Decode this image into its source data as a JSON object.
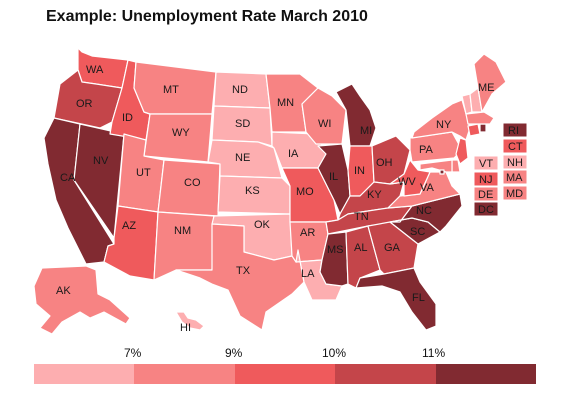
{
  "title": "Example: Unemployment Rate March 2010",
  "colors": {
    "b1": "#fdaeb0",
    "b2": "#f78383",
    "b3": "#ef5a5c",
    "b4": "#c4454a",
    "b5": "#812a31",
    "border": "#ffffff"
  },
  "legend": {
    "ticks": [
      "7%",
      "9%",
      "10%",
      "11%"
    ],
    "bins": [
      "b1",
      "b2",
      "b3",
      "b4",
      "b5"
    ]
  },
  "states": {
    "WA": "b3",
    "OR": "b4",
    "CA": "b5",
    "NV": "b5",
    "ID": "b3",
    "MT": "b2",
    "WY": "b2",
    "UT": "b2",
    "AZ": "b3",
    "CO": "b2",
    "NM": "b2",
    "ND": "b1",
    "SD": "b1",
    "NE": "b1",
    "KS": "b1",
    "OK": "b1",
    "TX": "b2",
    "MN": "b2",
    "IA": "b1",
    "MO": "b3",
    "AR": "b2",
    "LA": "b1",
    "WI": "b2",
    "IL": "b5",
    "MI": "b5",
    "IN": "b3",
    "OH": "b4",
    "KY": "b4",
    "TN": "b4",
    "MS": "b5",
    "AL": "b4",
    "GA": "b4",
    "FL": "b5",
    "SC": "b5",
    "NC": "b5",
    "VA": "b2",
    "WV": "b3",
    "PA": "b2",
    "NY": "b2",
    "ME": "b2",
    "VT": "b1",
    "NH": "b1",
    "MA": "b2",
    "CT": "b3",
    "RI": "b5",
    "NJ": "b3",
    "DE": "b2",
    "MD": "b2",
    "DC": "b5",
    "AK": "b2",
    "HI": "b1"
  },
  "labels": [
    "WA",
    "OR",
    "CA",
    "NV",
    "ID",
    "MT",
    "WY",
    "UT",
    "AZ",
    "CO",
    "NM",
    "ND",
    "SD",
    "NE",
    "KS",
    "OK",
    "TX",
    "MN",
    "IA",
    "MO",
    "AR",
    "LA",
    "WI",
    "IL",
    "MI",
    "IN",
    "OH",
    "KY",
    "TN",
    "MS",
    "AL",
    "GA",
    "FL",
    "SC",
    "NC",
    "VA",
    "WV",
    "PA",
    "NY",
    "ME",
    "AK",
    "HI"
  ],
  "side_labels": [
    "RI",
    "CT",
    "MA",
    "MD",
    "DC",
    "VT",
    "NJ",
    "DE",
    "NH"
  ]
}
